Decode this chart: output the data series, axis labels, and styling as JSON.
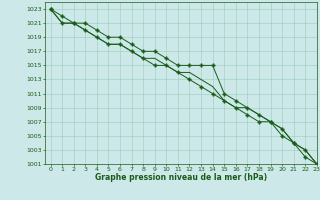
{
  "title": "Graphe pression niveau de la mer (hPa)",
  "background_color": "#cce8e8",
  "grid_color": "#99ccbb",
  "line_color": "#1a5c1a",
  "xlim": [
    -0.5,
    23
  ],
  "ylim": [
    1001,
    1024
  ],
  "xticks": [
    0,
    1,
    2,
    3,
    4,
    5,
    6,
    7,
    8,
    9,
    10,
    11,
    12,
    13,
    14,
    15,
    16,
    17,
    18,
    19,
    20,
    21,
    22,
    23
  ],
  "yticks": [
    1001,
    1003,
    1005,
    1007,
    1009,
    1011,
    1013,
    1015,
    1017,
    1019,
    1021,
    1023
  ],
  "series": [
    [
      1023,
      1022,
      1021,
      1021,
      1020,
      1019,
      1019,
      1018,
      1017,
      1017,
      1016,
      1015,
      1015,
      1015,
      1015,
      1011,
      1010,
      1009,
      1008,
      1007,
      1006,
      1004,
      1003,
      1001
    ],
    [
      1023,
      1021,
      1021,
      1020,
      1019,
      1018,
      1018,
      1017,
      1016,
      1016,
      1015,
      1014,
      1014,
      1013,
      1012,
      1010,
      1009,
      1009,
      1008,
      1007,
      1006,
      1004,
      1003,
      1001
    ],
    [
      1023,
      1021,
      1021,
      1020,
      1019,
      1018,
      1018,
      1017,
      1016,
      1015,
      1015,
      1014,
      1013,
      1012,
      1011,
      1010,
      1009,
      1008,
      1007,
      1007,
      1005,
      1004,
      1002,
      1001
    ]
  ],
  "marker_series": [
    0,
    2
  ],
  "marker": "P",
  "marker_size": 2.5,
  "linewidth": 0.7,
  "tick_fontsize": 4.5,
  "xlabel_fontsize": 5.5
}
